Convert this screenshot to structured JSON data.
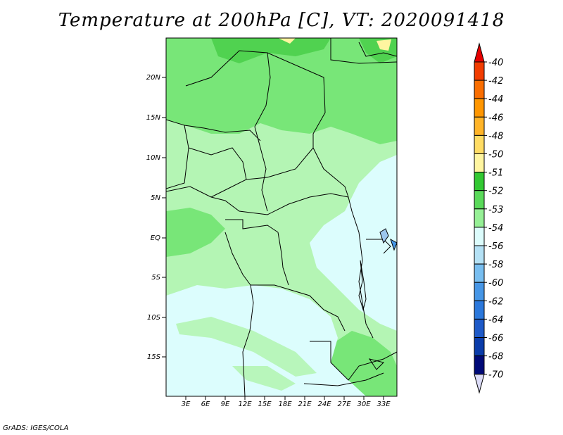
{
  "title": "Temperature at 200hPa [C], VT: 2020091418",
  "footer": "GrADS: IGES/COLA",
  "map": {
    "y_ticks": [
      "20N",
      "15N",
      "10N",
      "5N",
      "EQ",
      "5S",
      "10S",
      "15S"
    ],
    "x_ticks": [
      "3E",
      "6E",
      "9E",
      "12E",
      "15E",
      "18E",
      "21E",
      "24E",
      "27E",
      "30E",
      "33E"
    ]
  },
  "colorbar": {
    "labels": [
      "-40",
      "-42",
      "-44",
      "-46",
      "-48",
      "-50",
      "-51",
      "-52",
      "-53",
      "-54",
      "-56",
      "-58",
      "-60",
      "-62",
      "-64",
      "-66",
      "-68",
      "-70"
    ],
    "colors": [
      "#e60000",
      "#f23c00",
      "#fa6e00",
      "#ff9600",
      "#ffb428",
      "#ffdc64",
      "#fff5a0",
      "#32c832",
      "#5ada5a",
      "#96f096",
      "#dcfcfc",
      "#b4e1f5",
      "#78bef0",
      "#4696e6",
      "#2b78dc",
      "#1e5ac8",
      "#0a3caa",
      "#000a78",
      "#dcdcf8"
    ]
  },
  "colors": {
    "c52": "#50d250",
    "c53": "#78e678",
    "c54": "#b4f5b4",
    "c56": "#dcfdfd",
    "c50": "#fff5a0"
  }
}
